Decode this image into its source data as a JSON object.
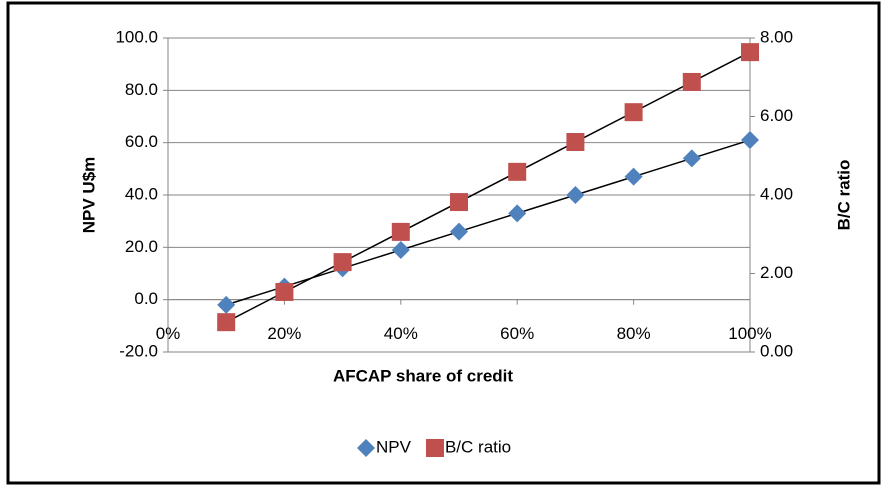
{
  "chart_data": {
    "type": "scatter",
    "x_label": "AFCAP share of credit",
    "y_label": "NPV U$m",
    "y2_label": "B/C ratio",
    "x": [
      10,
      20,
      30,
      40,
      50,
      60,
      70,
      80,
      90,
      100
    ],
    "series": [
      {
        "name": "NPV",
        "color": "#4f81bd",
        "marker": "diamond",
        "values": [
          -2,
          5,
          12,
          19,
          26,
          33,
          40,
          47,
          54,
          61
        ]
      },
      {
        "name": "B/C ratio",
        "color": "#c0504d",
        "marker": "square",
        "axis": "y2",
        "values": [
          0.76,
          1.53,
          2.29,
          3.06,
          3.82,
          4.59,
          5.35,
          6.11,
          6.88,
          7.64
        ]
      }
    ],
    "xlim": [
      0,
      100
    ],
    "xticks": [
      {
        "value": 0,
        "label": "0%"
      },
      {
        "value": 20,
        "label": "20%"
      },
      {
        "value": 40,
        "label": "40%"
      },
      {
        "value": 60,
        "label": "60%"
      },
      {
        "value": 80,
        "label": "80%"
      },
      {
        "value": 100,
        "label": "100%"
      }
    ],
    "ylim": [
      -20,
      100
    ],
    "yticks": [
      {
        "value": -20,
        "label": "-20.0"
      },
      {
        "value": 0,
        "label": "0.0"
      },
      {
        "value": 20,
        "label": "20.0"
      },
      {
        "value": 40,
        "label": "40.0"
      },
      {
        "value": 60,
        "label": "60.0"
      },
      {
        "value": 80,
        "label": "80.0"
      },
      {
        "value": 100,
        "label": "100.0"
      }
    ],
    "y2lim": [
      0,
      8
    ],
    "y2ticks": [
      {
        "value": 0,
        "label": "0.00"
      },
      {
        "value": 2,
        "label": "2.00"
      },
      {
        "value": 4,
        "label": "4.00"
      },
      {
        "value": 6,
        "label": "6.00"
      },
      {
        "value": 8,
        "label": "8.00"
      }
    ],
    "grid": true,
    "trendline": true,
    "legend": "bottom"
  }
}
